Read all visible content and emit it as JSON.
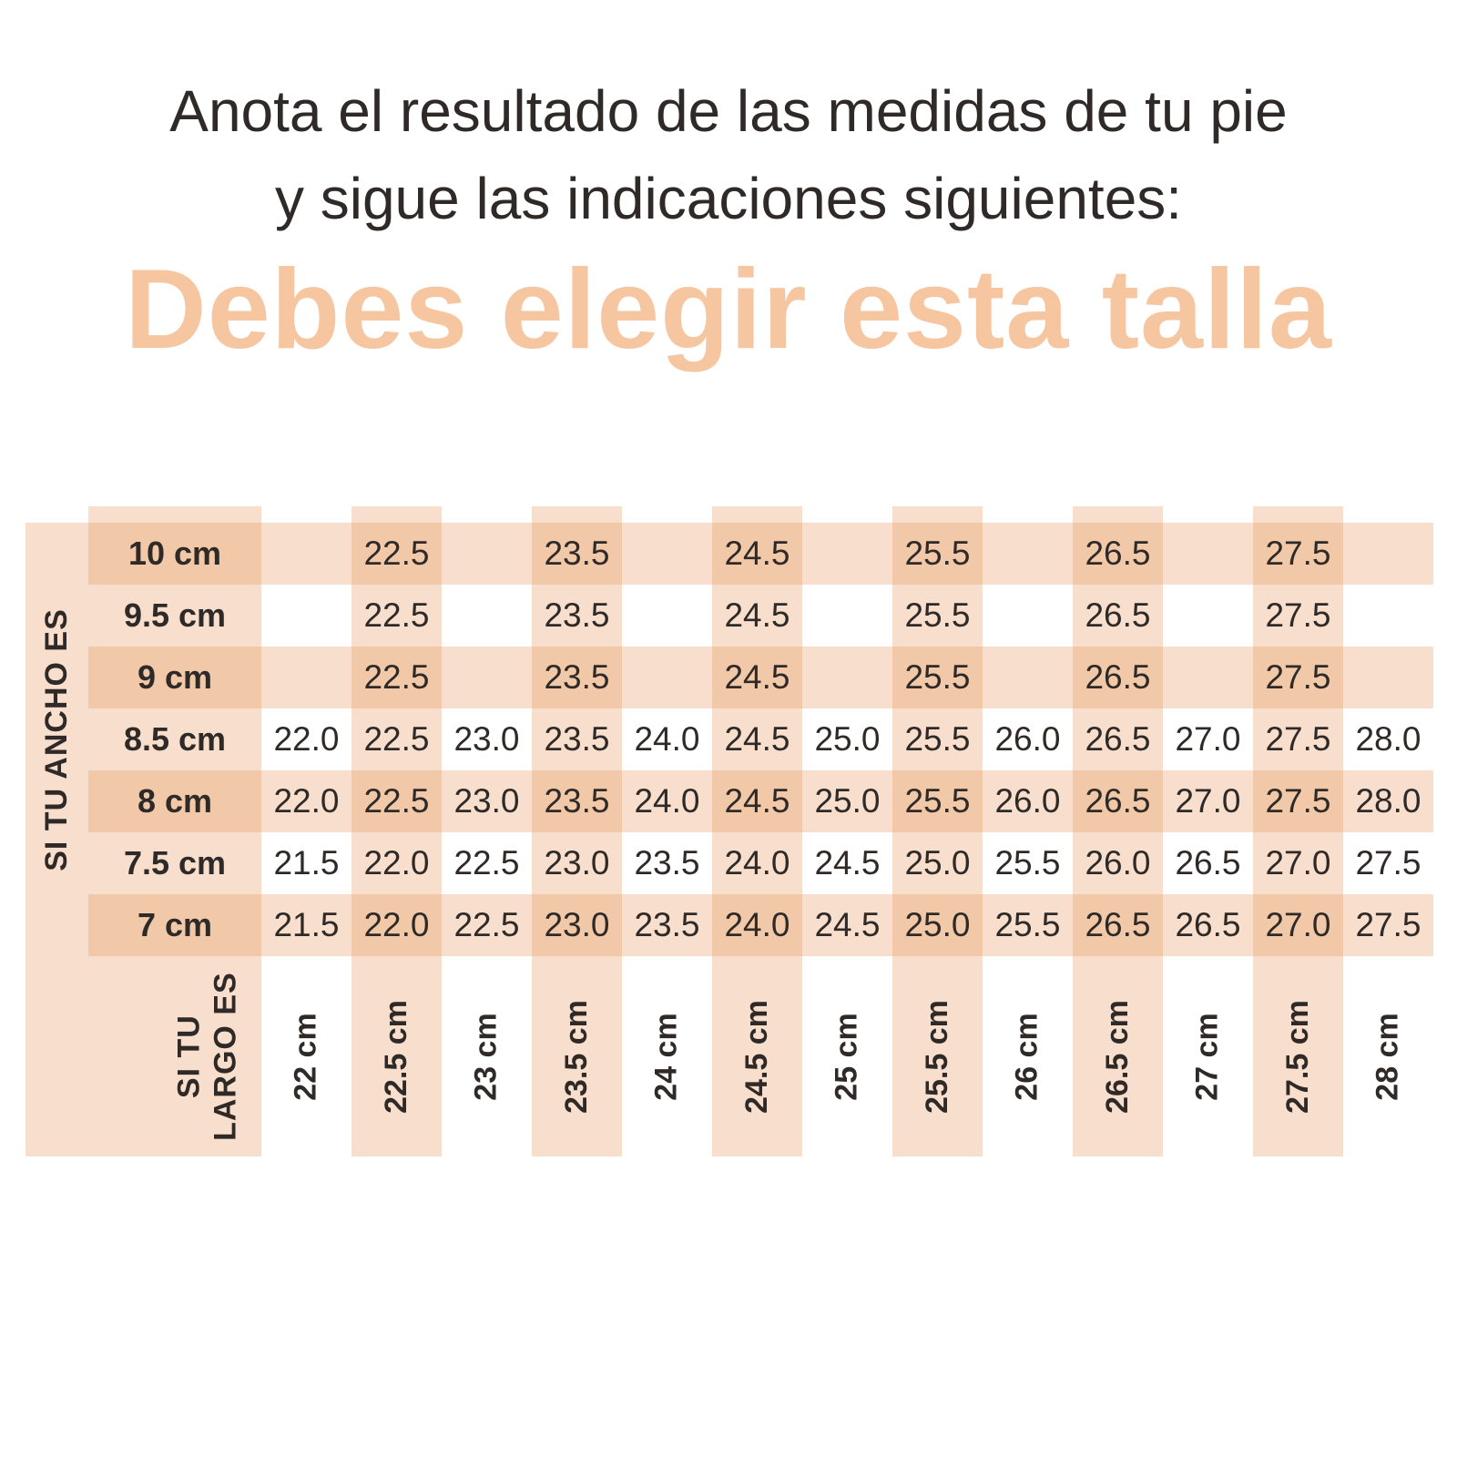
{
  "header": {
    "title_line1": "Anota el resultado de las medidas de tu pie",
    "title_line2": "y sigue las indicaciones siguientes:",
    "subtitle": "Debes elegir esta talla"
  },
  "table": {
    "width_axis_label": "SI TU ANCHO ES",
    "length_axis_label": [
      "SI TU",
      "LARGO ES"
    ],
    "column_labels": [
      "22 cm",
      "22.5 cm",
      "23 cm",
      "23.5 cm",
      "24 cm",
      "24.5 cm",
      "25 cm",
      "25.5 cm",
      "26 cm",
      "26.5 cm",
      "27 cm",
      "27.5 cm",
      "28 cm"
    ],
    "rows": [
      {
        "label": "10 cm",
        "values": [
          "",
          "22.5",
          "",
          "23.5",
          "",
          "24.5",
          "",
          "25.5",
          "",
          "26.5",
          "",
          "27.5",
          ""
        ]
      },
      {
        "label": "9.5 cm",
        "values": [
          "",
          "22.5",
          "",
          "23.5",
          "",
          "24.5",
          "",
          "25.5",
          "",
          "26.5",
          "",
          "27.5",
          ""
        ]
      },
      {
        "label": "9 cm",
        "values": [
          "",
          "22.5",
          "",
          "23.5",
          "",
          "24.5",
          "",
          "25.5",
          "",
          "26.5",
          "",
          "27.5",
          ""
        ]
      },
      {
        "label": "8.5 cm",
        "values": [
          "22.0",
          "22.5",
          "23.0",
          "23.5",
          "24.0",
          "24.5",
          "25.0",
          "25.5",
          "26.0",
          "26.5",
          "27.0",
          "27.5",
          "28.0"
        ]
      },
      {
        "label": "8 cm",
        "values": [
          "22.0",
          "22.5",
          "23.0",
          "23.5",
          "24.0",
          "24.5",
          "25.0",
          "25.5",
          "26.0",
          "26.5",
          "27.0",
          "27.5",
          "28.0"
        ]
      },
      {
        "label": "7.5 cm",
        "values": [
          "21.5",
          "22.0",
          "22.5",
          "23.0",
          "23.5",
          "24.0",
          "24.5",
          "25.0",
          "25.5",
          "26.0",
          "26.5",
          "27.0",
          "27.5"
        ]
      },
      {
        "label": "7 cm",
        "values": [
          "21.5",
          "22.0",
          "22.5",
          "23.0",
          "23.5",
          "24.0",
          "24.5",
          "25.0",
          "25.5",
          "26.5",
          "26.5",
          "27.0",
          "27.5"
        ]
      }
    ]
  },
  "colors": {
    "dark_peach": "#f1c9a8",
    "light_peach": "#f8decc",
    "title_peach": "#f6c6a1",
    "text_dark": "#2f2a27",
    "page_bg": "#ffffff"
  },
  "chart_data": {
    "type": "table",
    "title": "Debes elegir esta talla",
    "row_axis_label": "SI TU ANCHO ES",
    "col_axis_label": "SI TU LARGO ES",
    "row_categories_ancho_cm": [
      10,
      9.5,
      9,
      8.5,
      8,
      7.5,
      7
    ],
    "col_categories_largo_cm": [
      22,
      22.5,
      23,
      23.5,
      24,
      24.5,
      25,
      25.5,
      26,
      26.5,
      27,
      27.5,
      28
    ],
    "values_talla": [
      [
        null,
        22.5,
        null,
        23.5,
        null,
        24.5,
        null,
        25.5,
        null,
        26.5,
        null,
        27.5,
        null
      ],
      [
        null,
        22.5,
        null,
        23.5,
        null,
        24.5,
        null,
        25.5,
        null,
        26.5,
        null,
        27.5,
        null
      ],
      [
        null,
        22.5,
        null,
        23.5,
        null,
        24.5,
        null,
        25.5,
        null,
        26.5,
        null,
        27.5,
        null
      ],
      [
        22.0,
        22.5,
        23.0,
        23.5,
        24.0,
        24.5,
        25.0,
        25.5,
        26.0,
        26.5,
        27.0,
        27.5,
        28.0
      ],
      [
        22.0,
        22.5,
        23.0,
        23.5,
        24.0,
        24.5,
        25.0,
        25.5,
        26.0,
        26.5,
        27.0,
        27.5,
        28.0
      ],
      [
        21.5,
        22.0,
        22.5,
        23.0,
        23.5,
        24.0,
        24.5,
        25.0,
        25.5,
        26.0,
        26.5,
        27.0,
        27.5
      ],
      [
        21.5,
        22.0,
        22.5,
        23.0,
        23.5,
        24.0,
        24.5,
        25.0,
        25.5,
        26.5,
        26.5,
        27.0,
        27.5
      ]
    ],
    "grid": false,
    "legend": false
  }
}
